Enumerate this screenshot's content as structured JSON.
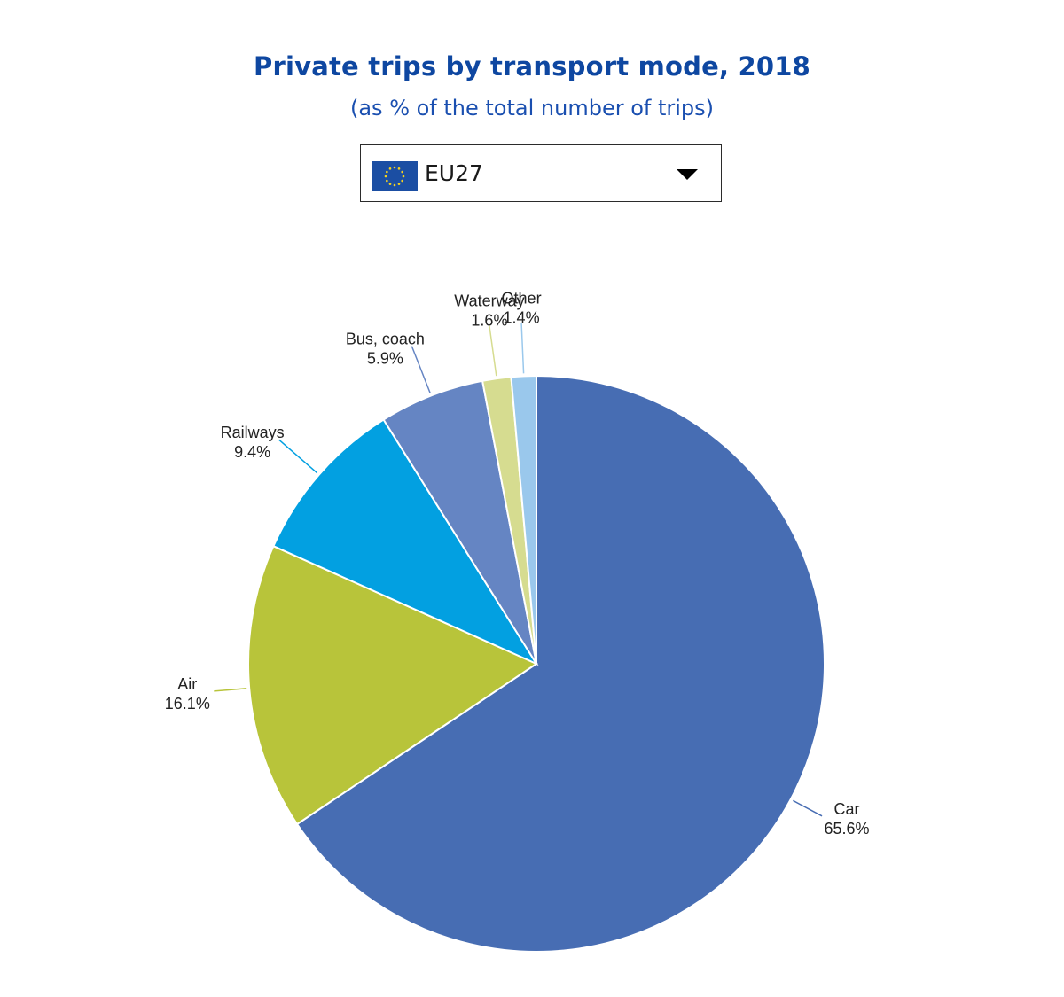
{
  "header": {
    "title": "Private trips by transport mode, 2018",
    "subtitle": "(as % of the total number of trips)"
  },
  "selector": {
    "value": "EU27",
    "flag_icon": "eu-flag-icon",
    "caret_icon": "caret-down-icon"
  },
  "chart_data": {
    "type": "pie",
    "title": "Private trips by transport mode, 2018",
    "subtitle": "(as % of the total number of trips)",
    "slices": [
      {
        "name": "Car",
        "value": 65.6,
        "label": "65.6%",
        "color": "#476db3"
      },
      {
        "name": "Air",
        "value": 16.1,
        "label": "16.1%",
        "color": "#b8c43a"
      },
      {
        "name": "Railways",
        "value": 9.4,
        "label": "9.4%",
        "color": "#02a0e1"
      },
      {
        "name": "Bus, coach",
        "value": 5.9,
        "label": "5.9%",
        "color": "#6585c3"
      },
      {
        "name": "Waterway",
        "value": 1.6,
        "label": "1.6%",
        "color": "#d6dc90"
      },
      {
        "name": "Other",
        "value": 1.4,
        "label": "1.4%",
        "color": "#9ac8ec"
      }
    ]
  }
}
